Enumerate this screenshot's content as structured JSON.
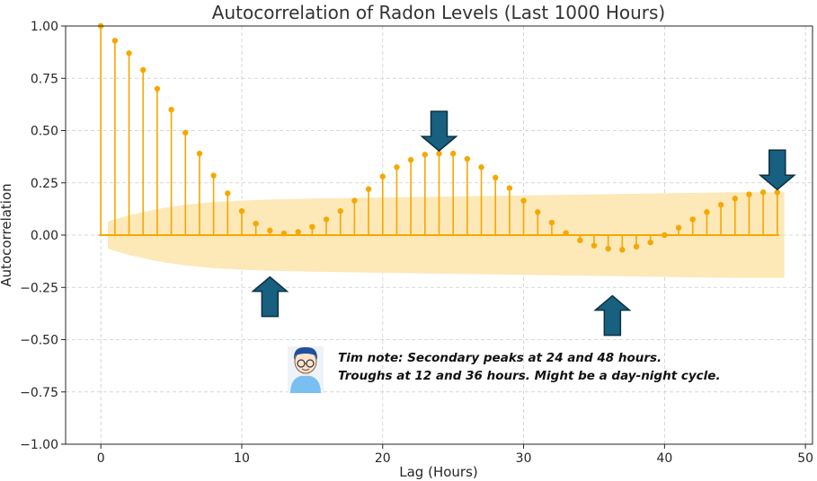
{
  "chart_data": {
    "type": "stem",
    "title": "Autocorrelation of Radon Levels (Last 1000 Hours)",
    "xlabel": "Lag (Hours)",
    "ylabel": "Autocorrelation",
    "xlim": [
      -2.5,
      50.5
    ],
    "ylim": [
      -1.0,
      1.0
    ],
    "xticks": [
      0,
      10,
      20,
      30,
      40,
      50
    ],
    "yticks": [
      -1.0,
      -0.75,
      -0.5,
      -0.25,
      0.0,
      0.25,
      0.5,
      0.75,
      1.0
    ],
    "xtick_labels": [
      "0",
      "10",
      "20",
      "30",
      "40",
      "50"
    ],
    "ytick_labels": [
      "−1.00",
      "−0.75",
      "−0.50",
      "−0.25",
      "0.00",
      "0.25",
      "0.50",
      "0.75",
      "1.00"
    ],
    "grid": true,
    "lags": [
      0,
      1,
      2,
      3,
      4,
      5,
      6,
      7,
      8,
      9,
      10,
      11,
      12,
      13,
      14,
      15,
      16,
      17,
      18,
      19,
      20,
      21,
      22,
      23,
      24,
      25,
      26,
      27,
      28,
      29,
      30,
      31,
      32,
      33,
      34,
      35,
      36,
      37,
      38,
      39,
      40,
      41,
      42,
      43,
      44,
      45,
      46,
      47,
      48
    ],
    "acf": [
      1.0,
      0.93,
      0.87,
      0.79,
      0.7,
      0.6,
      0.49,
      0.39,
      0.285,
      0.2,
      0.115,
      0.055,
      0.022,
      0.008,
      0.015,
      0.04,
      0.075,
      0.115,
      0.165,
      0.22,
      0.28,
      0.325,
      0.36,
      0.385,
      0.39,
      0.39,
      0.365,
      0.325,
      0.275,
      0.225,
      0.165,
      0.11,
      0.06,
      0.01,
      -0.025,
      -0.05,
      -0.065,
      -0.07,
      -0.055,
      -0.035,
      0.0,
      0.035,
      0.075,
      0.11,
      0.145,
      0.175,
      0.195,
      0.205,
      0.205
    ],
    "confidence_band": {
      "lags": [
        0.5,
        2,
        4,
        6,
        8,
        10,
        12,
        15,
        20,
        25,
        30,
        35,
        40,
        45,
        48.5
      ],
      "upper": [
        0.065,
        0.095,
        0.125,
        0.145,
        0.158,
        0.165,
        0.17,
        0.175,
        0.18,
        0.185,
        0.19,
        0.195,
        0.2,
        0.205,
        0.205
      ],
      "lower": [
        -0.065,
        -0.095,
        -0.125,
        -0.145,
        -0.158,
        -0.165,
        -0.17,
        -0.175,
        -0.18,
        -0.185,
        -0.19,
        -0.195,
        -0.2,
        -0.205,
        -0.205
      ]
    },
    "annotations": {
      "note": {
        "line1": "Tim note: Secondary peaks at 24 and 48 hours.",
        "line2": "Troughs at 12 and 36 hours. Might be a day-night cycle."
      },
      "arrows": [
        {
          "direction": "down",
          "lag": 24,
          "value": 0.39
        },
        {
          "direction": "down",
          "lag": 48,
          "value": 0.205
        },
        {
          "direction": "up",
          "lag": 12,
          "value": -0.2
        },
        {
          "direction": "up",
          "lag": 36.3,
          "value": -0.29
        }
      ]
    },
    "colors": {
      "stem": "#f5a800",
      "band": "#fde8b8",
      "arrow_fill": "#17607f",
      "arrow_stroke": "#0d2f40",
      "grid": "#cccccc",
      "avatar_hair": "#1f4f9e",
      "avatar_shirt": "#79bff2",
      "avatar_skin": "#fde2cc"
    }
  }
}
